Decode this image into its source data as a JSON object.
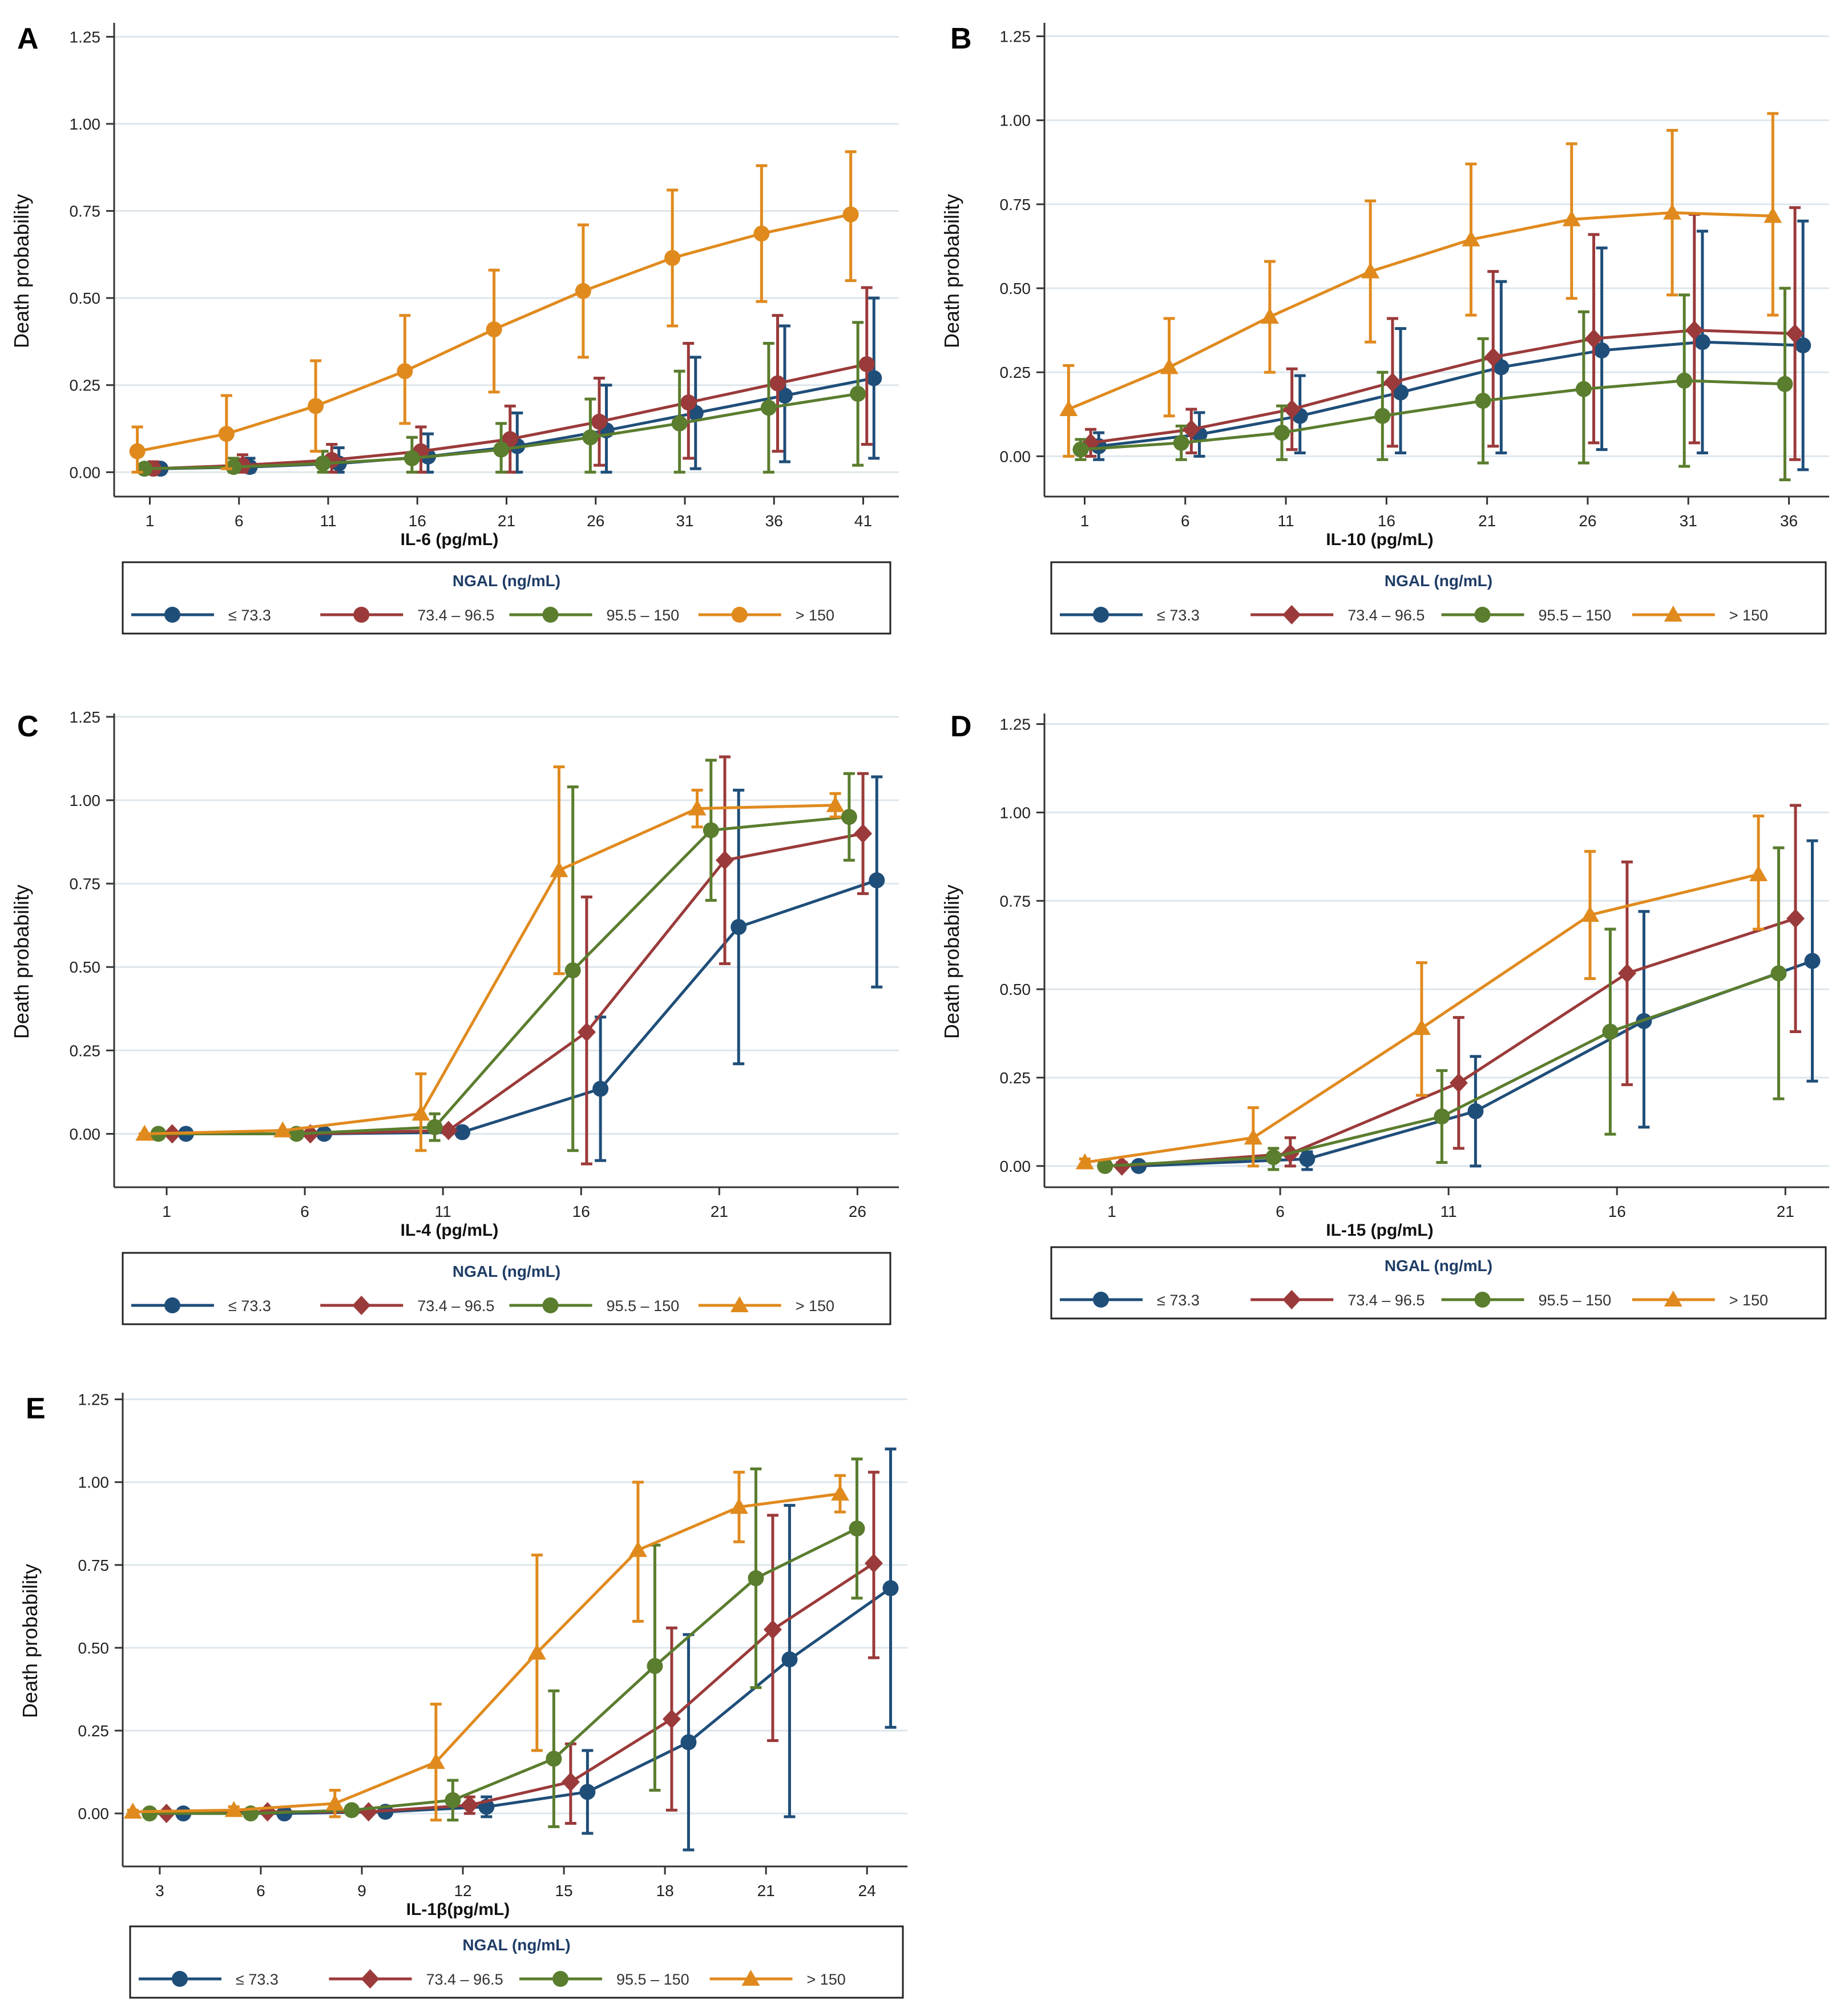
{
  "figure": {
    "legend_title": "NGAL (ng/mL)",
    "series_names": [
      "≤ 73.3",
      "73.4 – 96.5",
      "95.5 – 150",
      "> 150"
    ],
    "series_colors": [
      "#1F4E79",
      "#9B3A3A",
      "#5A7D2E",
      "#E08A1E"
    ]
  },
  "chart_data": [
    {
      "panel": "A",
      "type": "line",
      "xlabel": "IL-6 (pg/mL)",
      "ylabel": "Death probability",
      "xlim": [
        -1,
        43
      ],
      "ylim": [
        -0.07,
        1.29
      ],
      "xticks": [
        1,
        6,
        11,
        16,
        21,
        26,
        31,
        36,
        41
      ],
      "xtick_labels": [
        "1",
        "6",
        "11",
        "16",
        "21",
        "26",
        "31",
        "36",
        "41"
      ],
      "yticks": [
        0,
        0.25,
        0.5,
        0.75,
        1,
        1.25
      ],
      "ytick_labels": [
        "0.00",
        "0.25",
        "0.50",
        "0.75",
        "1.00",
        "1.25"
      ],
      "markers": [
        "circle",
        "circle",
        "circle",
        "circle"
      ],
      "x": [
        1,
        6,
        11,
        16,
        21,
        26,
        31,
        36,
        41
      ],
      "series": [
        {
          "name": "≤ 73.3",
          "offset": 0.6,
          "values": [
            0.01,
            0.015,
            0.025,
            0.045,
            0.075,
            0.12,
            0.17,
            0.22,
            0.27
          ],
          "lower": [
            0.0,
            0.0,
            0.0,
            0.0,
            0.0,
            0.0,
            0.01,
            0.03,
            0.04
          ],
          "upper": [
            0.02,
            0.04,
            0.07,
            0.11,
            0.17,
            0.25,
            0.33,
            0.42,
            0.5
          ]
        },
        {
          "name": "73.4 – 96.5",
          "offset": 0.2,
          "values": [
            0.01,
            0.02,
            0.035,
            0.06,
            0.095,
            0.145,
            0.2,
            0.255,
            0.31
          ],
          "lower": [
            0.0,
            0.0,
            0.0,
            0.0,
            0.0,
            0.02,
            0.04,
            0.06,
            0.08
          ],
          "upper": [
            0.03,
            0.05,
            0.08,
            0.13,
            0.19,
            0.27,
            0.37,
            0.45,
            0.53
          ]
        },
        {
          "name": "95.5 – 150",
          "offset": -0.3,
          "values": [
            0.01,
            0.015,
            0.025,
            0.04,
            0.065,
            0.1,
            0.14,
            0.185,
            0.225
          ],
          "lower": [
            0.0,
            0.0,
            0.0,
            0.0,
            0.0,
            0.0,
            0.0,
            0.0,
            0.02
          ],
          "upper": [
            0.02,
            0.04,
            0.06,
            0.1,
            0.14,
            0.21,
            0.29,
            0.37,
            0.43
          ]
        },
        {
          "name": "> 150",
          "offset": -0.7,
          "values": [
            0.06,
            0.11,
            0.19,
            0.29,
            0.41,
            0.52,
            0.615,
            0.685,
            0.74
          ],
          "lower": [
            0.0,
            0.01,
            0.06,
            0.14,
            0.23,
            0.33,
            0.42,
            0.49,
            0.55
          ],
          "upper": [
            0.13,
            0.22,
            0.32,
            0.45,
            0.58,
            0.71,
            0.81,
            0.88,
            0.92
          ]
        }
      ]
    },
    {
      "panel": "B",
      "type": "line",
      "xlabel": "IL-10 (pg/mL)",
      "ylabel": "Death probability",
      "xlim": [
        -1,
        38
      ],
      "ylim": [
        -0.12,
        1.29
      ],
      "xticks": [
        1,
        6,
        11,
        16,
        21,
        26,
        31,
        36
      ],
      "xtick_labels": [
        "1",
        "6",
        "11",
        "16",
        "21",
        "26",
        "31",
        "36"
      ],
      "yticks": [
        0,
        0.25,
        0.5,
        0.75,
        1,
        1.25
      ],
      "ytick_labels": [
        "0.00",
        "0.25",
        "0.50",
        "0.75",
        "1.00",
        "1.25"
      ],
      "markers": [
        "circle",
        "diamond",
        "circle",
        "triangle"
      ],
      "x": [
        1,
        6,
        11,
        16,
        21,
        26,
        31,
        36
      ],
      "series": [
        {
          "name": "≤ 73.3",
          "offset": 0.7,
          "values": [
            0.03,
            0.065,
            0.12,
            0.19,
            0.265,
            0.315,
            0.34,
            0.33
          ],
          "lower": [
            -0.01,
            0.0,
            0.01,
            0.01,
            0.01,
            0.02,
            0.01,
            -0.04
          ],
          "upper": [
            0.07,
            0.13,
            0.24,
            0.38,
            0.52,
            0.62,
            0.67,
            0.7
          ]
        },
        {
          "name": "73.4 – 96.5",
          "offset": 0.3,
          "values": [
            0.04,
            0.08,
            0.14,
            0.22,
            0.295,
            0.35,
            0.375,
            0.365
          ],
          "lower": [
            0.0,
            0.01,
            0.02,
            0.03,
            0.03,
            0.04,
            0.04,
            -0.01
          ],
          "upper": [
            0.08,
            0.14,
            0.26,
            0.41,
            0.55,
            0.66,
            0.72,
            0.74
          ]
        },
        {
          "name": "95.5 – 150",
          "offset": -0.2,
          "values": [
            0.02,
            0.04,
            0.07,
            0.12,
            0.165,
            0.2,
            0.225,
            0.215
          ],
          "lower": [
            -0.01,
            -0.01,
            -0.01,
            -0.01,
            -0.02,
            -0.02,
            -0.03,
            -0.07
          ],
          "upper": [
            0.05,
            0.09,
            0.15,
            0.25,
            0.35,
            0.43,
            0.48,
            0.5
          ]
        },
        {
          "name": "> 150",
          "offset": -0.8,
          "values": [
            0.14,
            0.265,
            0.415,
            0.55,
            0.645,
            0.705,
            0.725,
            0.715
          ],
          "lower": [
            0.0,
            0.12,
            0.25,
            0.34,
            0.42,
            0.47,
            0.48,
            0.42
          ],
          "upper": [
            0.27,
            0.41,
            0.58,
            0.76,
            0.87,
            0.93,
            0.97,
            1.02
          ]
        }
      ]
    },
    {
      "panel": "C",
      "type": "line",
      "xlabel": "IL-4 (pg/mL)",
      "ylabel": "Death probability",
      "xlim": [
        -0.9,
        27.5
      ],
      "ylim": [
        -0.16,
        1.26
      ],
      "xticks": [
        1,
        6,
        11,
        16,
        21,
        26
      ],
      "xtick_labels": [
        "1",
        "6",
        "11",
        "16",
        "21",
        "26"
      ],
      "yticks": [
        0,
        0.25,
        0.5,
        0.75,
        1,
        1.25
      ],
      "ytick_labels": [
        "0.00",
        "0.25",
        "0.50",
        "0.75",
        "1.00",
        "1.25"
      ],
      "markers": [
        "circle",
        "diamond",
        "circle",
        "triangle"
      ],
      "x": [
        1,
        6,
        11,
        16,
        21,
        26
      ],
      "series": [
        {
          "name": "≤ 73.3",
          "offset": 0.7,
          "values": [
            0.0,
            0.0,
            0.005,
            0.135,
            0.62,
            0.76
          ],
          "lower": [
            0.0,
            0.0,
            0.0,
            -0.08,
            0.21,
            0.44
          ],
          "upper": [
            0.0,
            0.0,
            0.01,
            0.35,
            1.03,
            1.07
          ]
        },
        {
          "name": "73.4 – 96.5",
          "offset": 0.2,
          "values": [
            0.0,
            0.0,
            0.01,
            0.305,
            0.82,
            0.9
          ],
          "lower": [
            0.0,
            0.0,
            0.0,
            -0.09,
            0.51,
            0.72
          ],
          "upper": [
            0.0,
            0.0,
            0.02,
            0.71,
            1.13,
            1.08
          ]
        },
        {
          "name": "95.5 – 150",
          "offset": -0.3,
          "values": [
            0.0,
            0.0,
            0.02,
            0.49,
            0.91,
            0.95
          ],
          "lower": [
            0.0,
            0.0,
            -0.02,
            -0.05,
            0.7,
            0.82
          ],
          "upper": [
            0.0,
            0.0,
            0.06,
            1.04,
            1.12,
            1.08
          ]
        },
        {
          "name": "> 150",
          "offset": -0.8,
          "values": [
            0.0,
            0.01,
            0.06,
            0.79,
            0.975,
            0.985
          ],
          "lower": [
            0.0,
            0.0,
            -0.05,
            0.48,
            0.92,
            0.95
          ],
          "upper": [
            0.0,
            0.01,
            0.18,
            1.1,
            1.03,
            1.02
          ]
        }
      ]
    },
    {
      "panel": "D",
      "type": "line",
      "xlabel": "IL-15 (pg/mL)",
      "ylabel": "Death probability",
      "xlim": [
        -1,
        22.3
      ],
      "ylim": [
        -0.06,
        1.28
      ],
      "xticks": [
        1,
        6,
        11,
        16,
        21
      ],
      "xtick_labels": [
        "1",
        "6",
        "11",
        "16",
        "21"
      ],
      "yticks": [
        0,
        0.25,
        0.5,
        0.75,
        1,
        1.25
      ],
      "ytick_labels": [
        "0.00",
        "0.25",
        "0.50",
        "0.75",
        "1.00",
        "1.25"
      ],
      "markers": [
        "circle",
        "diamond",
        "circle",
        "triangle"
      ],
      "x": [
        1,
        6,
        11,
        16,
        21
      ],
      "series": [
        {
          "name": "≤ 73.3",
          "offset": 0.8,
          "values": [
            0.0,
            0.02,
            0.155,
            0.41,
            0.58
          ],
          "lower": [
            0.0,
            -0.01,
            0.0,
            0.11,
            0.24
          ],
          "upper": [
            0.0,
            0.04,
            0.31,
            0.72,
            0.92
          ]
        },
        {
          "name": "73.4 – 96.5",
          "offset": 0.3,
          "values": [
            0.0,
            0.035,
            0.235,
            0.545,
            0.7
          ],
          "lower": [
            0.0,
            0.0,
            0.05,
            0.23,
            0.38
          ],
          "upper": [
            0.01,
            0.08,
            0.42,
            0.86,
            1.02
          ]
        },
        {
          "name": "95.5 – 150",
          "offset": -0.2,
          "values": [
            0.0,
            0.025,
            0.14,
            0.38,
            0.545
          ],
          "lower": [
            0.0,
            -0.01,
            0.01,
            0.09,
            0.19
          ],
          "upper": [
            0.01,
            0.05,
            0.27,
            0.67,
            0.9
          ]
        },
        {
          "name": "> 150",
          "offset": -0.8,
          "values": [
            0.01,
            0.08,
            0.39,
            0.71,
            0.825
          ],
          "lower": [
            0.0,
            0.0,
            0.2,
            0.53,
            0.67
          ],
          "upper": [
            0.02,
            0.165,
            0.575,
            0.89,
            0.99
          ]
        }
      ]
    },
    {
      "panel": "E",
      "type": "line",
      "xlabel": "IL-1β(pg/mL)",
      "ylabel": "Death probability",
      "xlim": [
        1.9,
        25.2
      ],
      "ylim": [
        -0.16,
        1.27
      ],
      "xticks": [
        3,
        6,
        9,
        12,
        15,
        18,
        21,
        24
      ],
      "xtick_labels": [
        "3",
        "6",
        "9",
        "12",
        "15",
        "18",
        "21",
        "24"
      ],
      "yticks": [
        0,
        0.25,
        0.5,
        0.75,
        1,
        1.25
      ],
      "ytick_labels": [
        "0.00",
        "0.25",
        "0.50",
        "0.75",
        "1.00",
        "1.25"
      ],
      "markers": [
        "circle",
        "diamond",
        "circle",
        "triangle"
      ],
      "x": [
        3,
        6,
        9,
        12,
        15,
        18,
        21,
        24
      ],
      "series": [
        {
          "name": "≤ 73.3",
          "offset": 0.7,
          "values": [
            0.0,
            0.0,
            0.005,
            0.02,
            0.065,
            0.215,
            0.465,
            0.68
          ],
          "lower": [
            0.0,
            0.0,
            0.0,
            -0.01,
            -0.06,
            -0.11,
            -0.01,
            0.26
          ],
          "upper": [
            0.0,
            0.0,
            0.01,
            0.05,
            0.19,
            0.54,
            0.93,
            1.1
          ]
        },
        {
          "name": "73.4 – 96.5",
          "offset": 0.2,
          "values": [
            0.0,
            0.005,
            0.005,
            0.025,
            0.095,
            0.285,
            0.555,
            0.755
          ],
          "lower": [
            0.0,
            0.0,
            0.0,
            0.0,
            -0.03,
            0.01,
            0.22,
            0.47
          ],
          "upper": [
            0.0,
            0.01,
            0.01,
            0.05,
            0.21,
            0.56,
            0.9,
            1.03
          ]
        },
        {
          "name": "95.5 – 150",
          "offset": -0.3,
          "values": [
            0.0,
            0.0,
            0.01,
            0.04,
            0.165,
            0.445,
            0.71,
            0.86
          ],
          "lower": [
            0.0,
            0.0,
            0.0,
            -0.02,
            -0.04,
            0.07,
            0.38,
            0.65
          ],
          "upper": [
            0.0,
            0.0,
            0.02,
            0.1,
            0.37,
            0.81,
            1.04,
            1.07
          ]
        },
        {
          "name": "> 150",
          "offset": -0.8,
          "values": [
            0.005,
            0.01,
            0.03,
            0.155,
            0.485,
            0.795,
            0.925,
            0.965
          ],
          "lower": [
            0.0,
            0.0,
            -0.01,
            -0.02,
            0.19,
            0.58,
            0.82,
            0.91
          ],
          "upper": [
            0.01,
            0.02,
            0.07,
            0.33,
            0.78,
            1.0,
            1.03,
            1.02
          ]
        }
      ]
    }
  ]
}
